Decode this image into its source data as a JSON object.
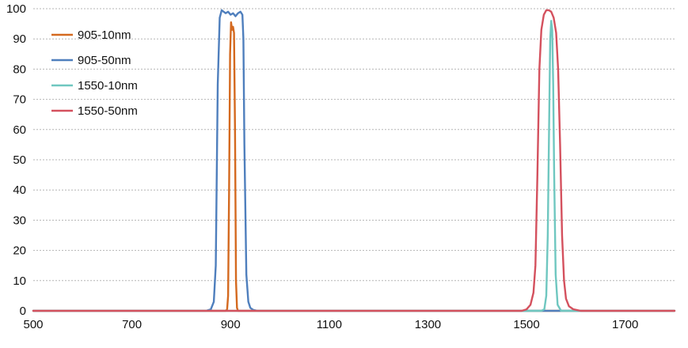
{
  "chart_data": {
    "type": "line",
    "title": "",
    "xlabel": "",
    "ylabel": "",
    "xlim": [
      500,
      1800
    ],
    "ylim": [
      0,
      100
    ],
    "xticks": [
      500,
      700,
      900,
      1100,
      1300,
      1500,
      1700
    ],
    "yticks": [
      0,
      10,
      20,
      30,
      40,
      50,
      60,
      70,
      80,
      90,
      100
    ],
    "grid": true,
    "legend": "top-left",
    "series": [
      {
        "name": "905-10nm",
        "color": "#d4691f",
        "x": [
          500,
          890,
          893,
          895,
          897,
          899,
          901,
          903,
          905,
          907,
          909,
          911,
          913,
          915,
          920,
          1800
        ],
        "y": [
          0,
          0,
          0.5,
          5,
          40,
          85,
          95.5,
          93,
          94,
          92,
          60,
          10,
          1,
          0,
          0,
          0
        ]
      },
      {
        "name": "905-50nm",
        "color": "#4f7fbd",
        "x": [
          500,
          850,
          860,
          866,
          870,
          874,
          878,
          882,
          886,
          890,
          895,
          900,
          905,
          910,
          915,
          920,
          924,
          926,
          928,
          932,
          936,
          940,
          946,
          955,
          1000,
          1800
        ],
        "y": [
          0,
          0,
          0.5,
          3,
          15,
          75,
          97,
          99.5,
          99,
          98.5,
          99,
          98,
          98.5,
          97.5,
          98.5,
          99,
          98,
          90,
          55,
          12,
          3,
          1,
          0.3,
          0,
          0,
          0
        ]
      },
      {
        "name": "1550-10nm",
        "color": "#6fc7c0",
        "x": [
          500,
          1530,
          1536,
          1540,
          1543,
          1546,
          1548,
          1550,
          1552,
          1554,
          1556,
          1559,
          1563,
          1570,
          1800
        ],
        "y": [
          0,
          0,
          0.5,
          5,
          25,
          65,
          90,
          96,
          93,
          75,
          45,
          12,
          2,
          0,
          0
        ]
      },
      {
        "name": "1550-50nm",
        "color": "#d4515e",
        "x": [
          500,
          1490,
          1500,
          1508,
          1514,
          1518,
          1522,
          1526,
          1530,
          1535,
          1540,
          1545,
          1550,
          1555,
          1560,
          1564,
          1568,
          1572,
          1576,
          1580,
          1586,
          1595,
          1610,
          1800
        ],
        "y": [
          0,
          0,
          0.5,
          2,
          6,
          15,
          45,
          80,
          93,
          98,
          99.5,
          99.5,
          99,
          97,
          92,
          80,
          55,
          25,
          10,
          4,
          1.5,
          0.5,
          0,
          0
        ]
      }
    ]
  }
}
